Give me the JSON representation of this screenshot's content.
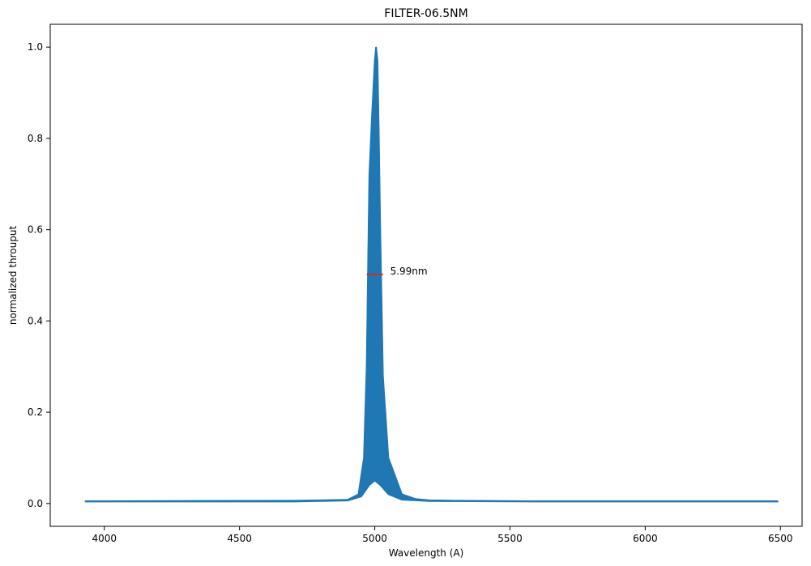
{
  "chart_data": {
    "type": "line",
    "title": "FILTER-06.5NM",
    "xlabel": "Wavelength (A)",
    "ylabel": "normalized throuput",
    "xlim": [
      3800,
      6580
    ],
    "ylim": [
      -0.05,
      1.05
    ],
    "xticks": [
      4000,
      4500,
      5000,
      5500,
      6000,
      6500
    ],
    "yticks": [
      0.0,
      0.2,
      0.4,
      0.6,
      0.8,
      1.0
    ],
    "xtick_labels": [
      "4000",
      "4500",
      "5000",
      "5500",
      "6000",
      "6500"
    ],
    "ytick_labels": [
      "0.0",
      "0.2",
      "0.4",
      "0.6",
      "0.8",
      "1.0"
    ],
    "grid": false,
    "series": [
      {
        "color": "#1f77b4",
        "note_values_are_envelope": false,
        "upper": {
          "x": [
            3930,
            4700,
            4900,
            4940,
            4960,
            4970,
            4980,
            4990,
            5000,
            5005,
            5010,
            5015,
            5020,
            5030,
            5050,
            5100,
            5150,
            5200,
            5300,
            5600,
            6000,
            6490
          ],
          "y": [
            0.005,
            0.006,
            0.008,
            0.02,
            0.1,
            0.3,
            0.72,
            0.85,
            0.97,
            1.0,
            0.97,
            0.8,
            0.6,
            0.28,
            0.1,
            0.02,
            0.01,
            0.007,
            0.006,
            0.005,
            0.005,
            0.005
          ]
        },
        "lower": {
          "x": [
            3930,
            4700,
            4900,
            4950,
            4980,
            5000,
            5020,
            5050,
            5100,
            5200,
            5600,
            6000,
            6490
          ],
          "y": [
            0.004,
            0.004,
            0.006,
            0.015,
            0.04,
            0.05,
            0.04,
            0.02,
            0.008,
            0.005,
            0.004,
            0.004,
            0.004
          ]
        }
      }
    ],
    "annotation": {
      "text": "5.99nm",
      "x_start": 4970,
      "x_end": 5030,
      "y": 0.502,
      "color": "#d62728"
    }
  }
}
